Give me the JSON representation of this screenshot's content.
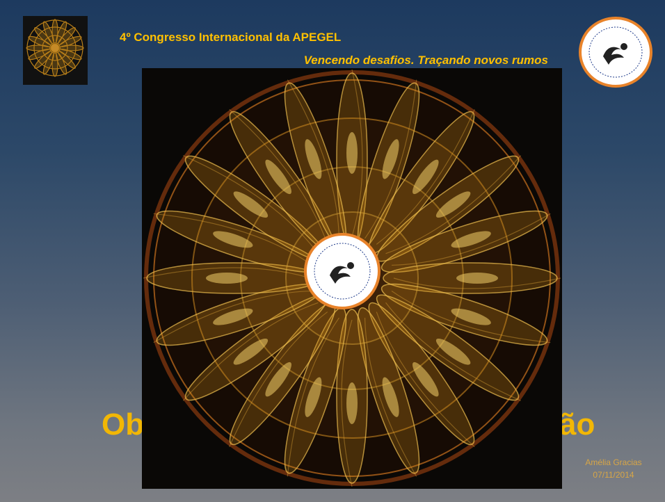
{
  "header": {
    "title": "4º Congresso Internacional da APEGEL",
    "subtitle": "Vencendo desafios. Traçando novos rumos"
  },
  "slide": {
    "title_visible_start": "Ob",
    "title_visible_end": "ão",
    "author": "Amélia Gracias",
    "date": "07/11/2014"
  }
}
